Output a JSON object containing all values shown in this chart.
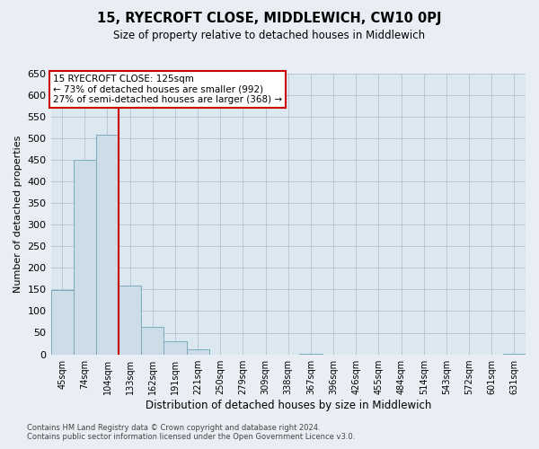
{
  "title": "15, RYECROFT CLOSE, MIDDLEWICH, CW10 0PJ",
  "subtitle": "Size of property relative to detached houses in Middlewich",
  "xlabel": "Distribution of detached houses by size in Middlewich",
  "ylabel": "Number of detached properties",
  "footnote1": "Contains HM Land Registry data © Crown copyright and database right 2024.",
  "footnote2": "Contains public sector information licensed under the Open Government Licence v3.0.",
  "bins": [
    "45sqm",
    "74sqm",
    "104sqm",
    "133sqm",
    "162sqm",
    "191sqm",
    "221sqm",
    "250sqm",
    "279sqm",
    "309sqm",
    "338sqm",
    "367sqm",
    "396sqm",
    "426sqm",
    "455sqm",
    "484sqm",
    "514sqm",
    "543sqm",
    "572sqm",
    "601sqm",
    "631sqm"
  ],
  "bar_values": [
    148,
    449,
    508,
    158,
    64,
    31,
    11,
    0,
    0,
    0,
    0,
    1,
    0,
    0,
    0,
    0,
    0,
    0,
    0,
    0,
    1
  ],
  "bar_color": "#ccdde8",
  "bar_edgecolor": "#7aaabb",
  "vline_color": "#cc0000",
  "ylim": [
    0,
    650
  ],
  "yticks": [
    0,
    50,
    100,
    150,
    200,
    250,
    300,
    350,
    400,
    450,
    500,
    550,
    600,
    650
  ],
  "annotation_title": "15 RYECROFT CLOSE: 125sqm",
  "annotation_line1": "← 73% of detached houses are smaller (992)",
  "annotation_line2": "27% of semi-detached houses are larger (368) →",
  "bg_color": "#e8eef4",
  "plot_bg_color": "#dce8f0",
  "grid_color": "#b8c8d4"
}
